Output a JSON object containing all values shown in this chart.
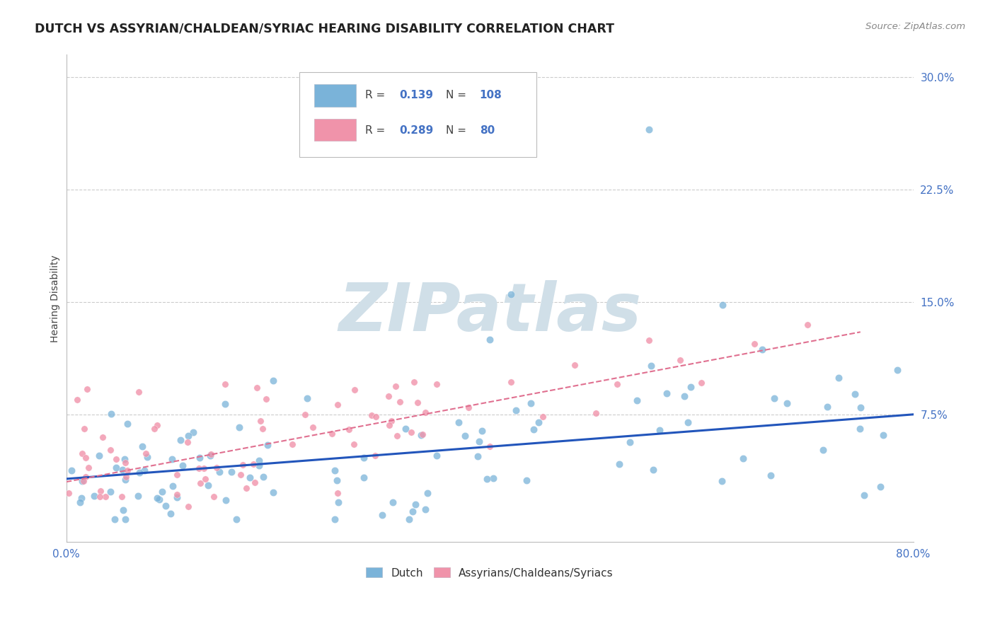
{
  "title": "DUTCH VS ASSYRIAN/CHALDEAN/SYRIAC HEARING DISABILITY CORRELATION CHART",
  "source_text": "Source: ZipAtlas.com",
  "ylabel": "Hearing Disability",
  "yticks": [
    0.075,
    0.15,
    0.225,
    0.3
  ],
  "ytick_labels": [
    "7.5%",
    "15.0%",
    "22.5%",
    "30.0%"
  ],
  "xlim": [
    0.0,
    0.8
  ],
  "ylim": [
    -0.01,
    0.315
  ],
  "blue_scatter_color": "#7ab3d9",
  "pink_scatter_color": "#f093aa",
  "blue_line_color": "#2255bb",
  "pink_line_color": "#e07090",
  "watermark_text": "ZIPatlas",
  "watermark_color": "#d0dfe8",
  "background_color": "#ffffff",
  "grid_color": "#cccccc",
  "title_color": "#222222",
  "axis_label_color": "#4472c4",
  "legend_blue_R": "0.139",
  "legend_blue_N": "108",
  "legend_pink_R": "0.289",
  "legend_pink_N": "80",
  "R_N_color": "#4472c4",
  "legend_label_color": "#555555"
}
